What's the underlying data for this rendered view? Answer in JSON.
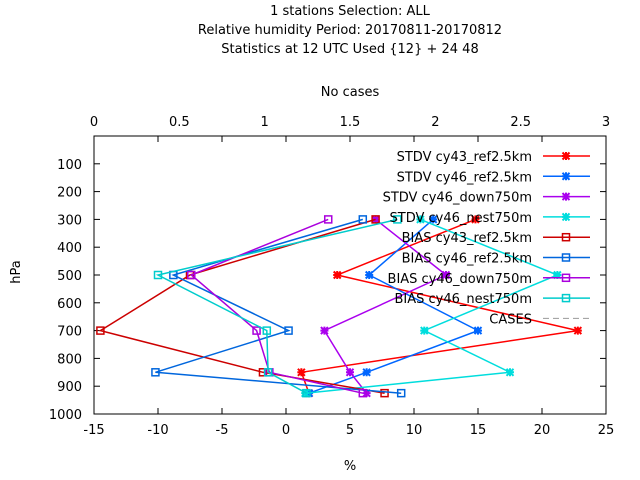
{
  "chart_data": {
    "type": "line",
    "title_lines": [
      "1 stations Selection: ALL",
      "Relative humidity  Period: 20170811-20170812",
      "Statistics at 12 UTC  Used {12} + 24 48"
    ],
    "xlabel": "%",
    "ylabel": "hPa",
    "x2label": "No cases",
    "xlim": [
      -15,
      25
    ],
    "ylim": [
      1000,
      0
    ],
    "x2lim": [
      0,
      3
    ],
    "xticks": [
      "-15",
      "-10",
      "-5",
      "0",
      "5",
      "10",
      "15",
      "20",
      "25"
    ],
    "yticks": [
      "100",
      "200",
      "300",
      "400",
      "500",
      "600",
      "700",
      "800",
      "900",
      "1000"
    ],
    "x2ticks": [
      "0",
      "0.5",
      "1",
      "1.5",
      "2",
      "2.5",
      "3"
    ],
    "legend_position": "top-right",
    "series": [
      {
        "name": "STDV cy43_ref2.5km",
        "color": "#ff0000",
        "marker": "x",
        "points": [
          [
            14.8,
            300
          ],
          [
            4.0,
            500
          ],
          [
            22.8,
            700
          ],
          [
            1.2,
            850
          ],
          [
            1.8,
            925
          ]
        ]
      },
      {
        "name": "STDV cy46_ref2.5km",
        "color": "#0066ff",
        "marker": "x",
        "points": [
          [
            11.5,
            300
          ],
          [
            6.5,
            500
          ],
          [
            15.0,
            700
          ],
          [
            6.3,
            850
          ],
          [
            1.8,
            925
          ]
        ]
      },
      {
        "name": "STDV cy46_down750m",
        "color": "#aa00ee",
        "marker": "x",
        "points": [
          [
            7.0,
            300
          ],
          [
            12.5,
            500
          ],
          [
            3.0,
            700
          ],
          [
            5.0,
            850
          ],
          [
            6.3,
            925
          ]
        ]
      },
      {
        "name": "STDV cy46_nest750m",
        "color": "#00dddd",
        "marker": "x",
        "points": [
          [
            10.5,
            300
          ],
          [
            21.2,
            500
          ],
          [
            10.8,
            700
          ],
          [
            17.5,
            850
          ],
          [
            1.5,
            925
          ]
        ]
      },
      {
        "name": "BIAS cy43_ref2.5km",
        "color": "#cc0000",
        "marker": "square",
        "points": [
          [
            7.0,
            300
          ],
          [
            -7.5,
            500
          ],
          [
            -14.5,
            700
          ],
          [
            -1.8,
            850
          ],
          [
            7.7,
            925
          ]
        ]
      },
      {
        "name": "BIAS cy46_ref2.5km",
        "color": "#0066dd",
        "marker": "square",
        "points": [
          [
            6.0,
            300
          ],
          [
            -8.8,
            500
          ],
          [
            0.2,
            700
          ],
          [
            -10.2,
            850
          ],
          [
            9.0,
            925
          ]
        ]
      },
      {
        "name": "BIAS cy46_down750m",
        "color": "#aa00dd",
        "marker": "square",
        "points": [
          [
            3.3,
            300
          ],
          [
            -7.4,
            500
          ],
          [
            -2.3,
            700
          ],
          [
            -1.3,
            850
          ],
          [
            6.0,
            925
          ]
        ]
      },
      {
        "name": "BIAS cy46_nest750m",
        "color": "#00cccc",
        "marker": "square",
        "points": [
          [
            8.7,
            300
          ],
          [
            -10.0,
            500
          ],
          [
            -1.5,
            700
          ],
          [
            -1.4,
            850
          ],
          [
            1.6,
            925
          ]
        ]
      },
      {
        "name": "CASES",
        "color": "#999999",
        "marker": "none",
        "dashed": true,
        "points": []
      }
    ]
  }
}
